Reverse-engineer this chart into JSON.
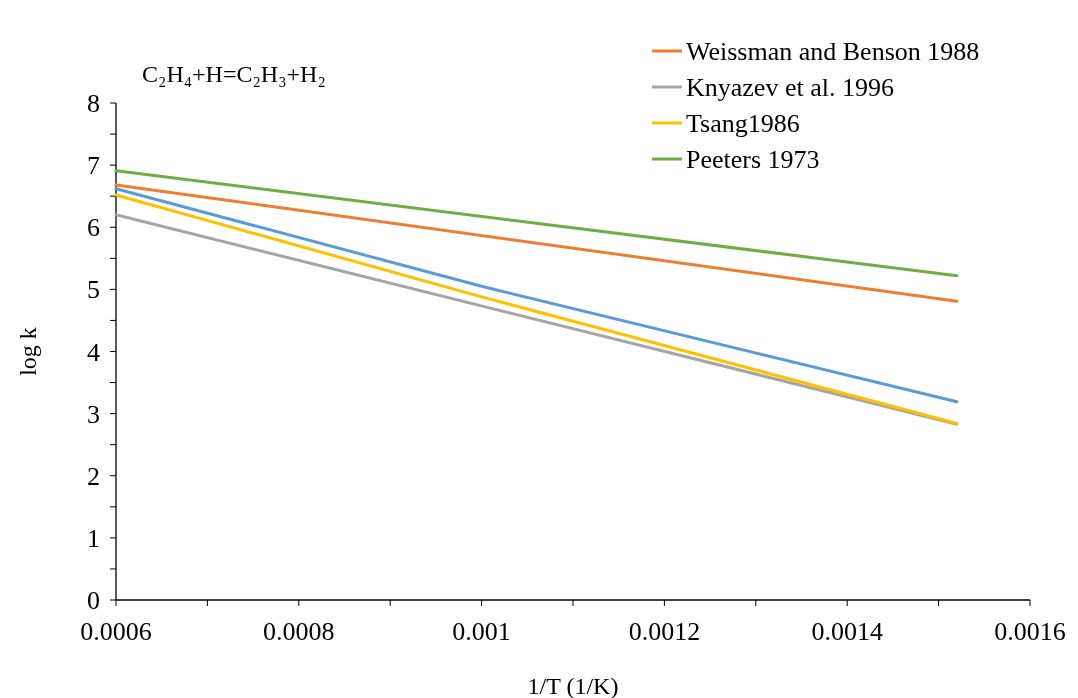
{
  "chart_data": {
    "type": "line",
    "title": "C₂H₄+H=C₂H₃+H₂",
    "xlabel": "1/T (1/K)",
    "ylabel": "log k",
    "xlim": [
      0.0006,
      0.0016
    ],
    "xticks": [
      0.0006,
      {
        "value": 0.0007,
        "label": null
      },
      0.0008,
      {
        "value": 0.0009,
        "label": null
      },
      0.001,
      {
        "value": 0.0011,
        "label": null
      },
      0.0012,
      {
        "value": 0.0013,
        "label": null
      },
      0.0014,
      {
        "value": 0.0015,
        "label": null
      },
      0.0016
    ],
    "ylim": [
      0,
      8
    ],
    "yticks": [
      0,
      {
        "value": 0.5,
        "label": null
      },
      1,
      {
        "value": 1.5,
        "label": null
      },
      2,
      {
        "value": 2.5,
        "label": null
      },
      3,
      {
        "value": 3.5,
        "label": null
      },
      4,
      {
        "value": 4.5,
        "label": null
      },
      5,
      {
        "value": 5.5,
        "label": null
      },
      6,
      {
        "value": 6.5,
        "label": null
      },
      7,
      {
        "value": 7.5,
        "label": null
      },
      8
    ],
    "grid": false,
    "legend": "top right",
    "marker": "none",
    "line_style": "solid",
    "series": [
      {
        "color": "#5b9bd5",
        "x": [
          0.0006,
          0.001,
          0.00152
        ],
        "values": [
          6.62,
          5.05,
          3.19
        ]
      },
      {
        "name": "Weissman and Benson 1988",
        "color": "#ed7d31",
        "x": [
          0.0006,
          0.00152
        ],
        "values": [
          6.68,
          4.81
        ]
      },
      {
        "name": "Knyazev et al. 1996",
        "color": "#a5a5a5",
        "x": [
          0.0006,
          0.00152
        ],
        "values": [
          6.2,
          2.83
        ]
      },
      {
        "name": "Tsang1986",
        "color": "#ffc000",
        "x": [
          0.0006,
          0.001,
          0.00152
        ],
        "values": [
          6.52,
          4.88,
          2.84
        ]
      },
      {
        "name": "Peeters 1973",
        "color": "#70ad47",
        "x": [
          0.0006,
          0.00152
        ],
        "values": [
          6.91,
          5.22
        ]
      }
    ]
  }
}
